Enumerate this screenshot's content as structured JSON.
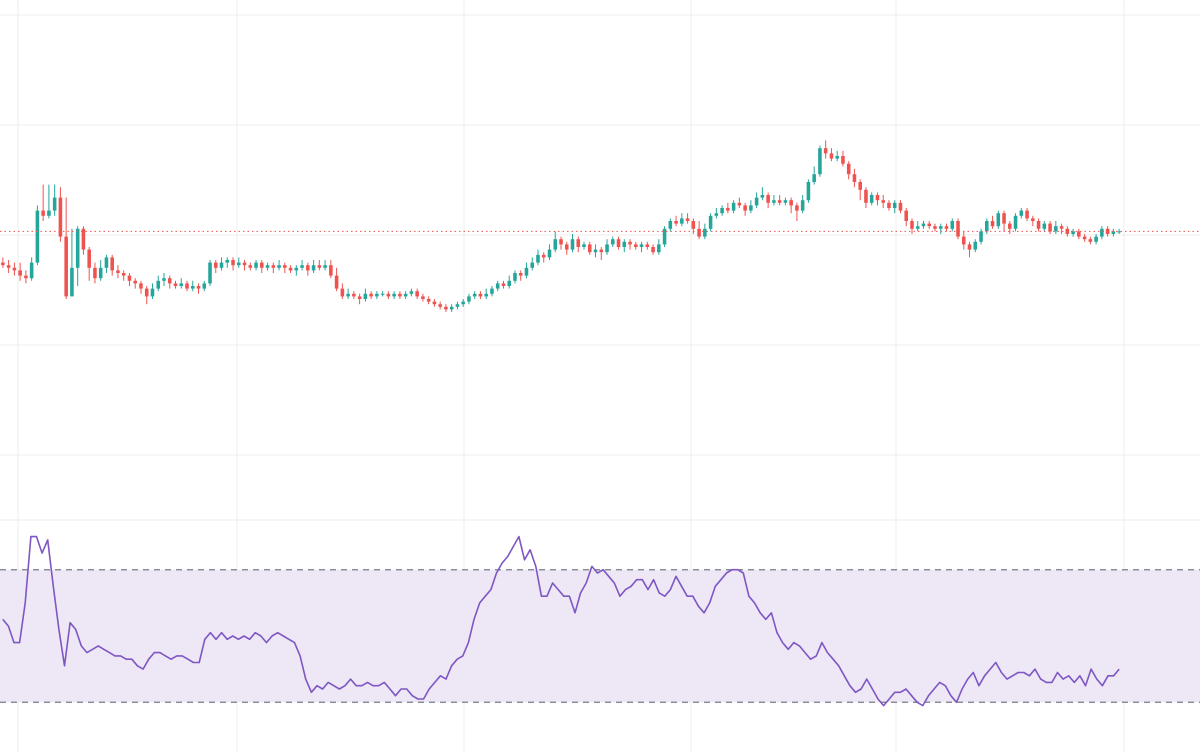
{
  "theme": {
    "background": "#ffffff",
    "grid": "#ececec",
    "up": "#26a69a",
    "down": "#ef5350",
    "price_line": "#ef5350",
    "rsi_line": "#7e57c2",
    "rsi_band_fill": "#ede7f6",
    "band_border": "#787b86"
  },
  "chart_data": [
    {
      "type": "candlestick",
      "title": "",
      "grid": true,
      "x_index_range": [
        0,
        200
      ],
      "ylim": [
        0,
        10
      ],
      "last_price_line": 5.55,
      "candles": [
        [
          4.95,
          4.9,
          5.05,
          4.85
        ],
        [
          4.9,
          4.85,
          5.0,
          4.75
        ],
        [
          4.85,
          4.8,
          4.95,
          4.7
        ],
        [
          4.8,
          4.7,
          4.95,
          4.6
        ],
        [
          4.7,
          4.65,
          4.8,
          4.55
        ],
        [
          4.65,
          4.95,
          5.05,
          4.6
        ],
        [
          4.95,
          5.95,
          6.05,
          4.9
        ],
        [
          5.95,
          5.85,
          6.45,
          5.75
        ],
        [
          5.85,
          5.95,
          6.45,
          5.8
        ],
        [
          5.95,
          6.2,
          6.45,
          5.85
        ],
        [
          6.2,
          5.45,
          6.4,
          5.35
        ],
        [
          5.45,
          4.3,
          6.2,
          4.25
        ],
        [
          4.3,
          4.85,
          5.6,
          4.35
        ],
        [
          4.85,
          5.6,
          5.65,
          4.5
        ],
        [
          5.6,
          5.2,
          5.65,
          5.1
        ],
        [
          5.2,
          4.85,
          5.25,
          4.6
        ],
        [
          4.85,
          4.65,
          4.95,
          4.55
        ],
        [
          4.65,
          4.85,
          5.0,
          4.6
        ],
        [
          4.85,
          5.05,
          5.1,
          4.75
        ],
        [
          5.05,
          4.8,
          5.1,
          4.7
        ],
        [
          4.8,
          4.75,
          4.9,
          4.65
        ],
        [
          4.75,
          4.7,
          4.8,
          4.6
        ],
        [
          4.7,
          4.6,
          4.75,
          4.5
        ],
        [
          4.6,
          4.55,
          4.65,
          4.45
        ],
        [
          4.55,
          4.45,
          4.6,
          4.35
        ],
        [
          4.45,
          4.3,
          4.5,
          4.15
        ],
        [
          4.3,
          4.45,
          4.55,
          4.25
        ],
        [
          4.45,
          4.6,
          4.7,
          4.4
        ],
        [
          4.6,
          4.65,
          4.75,
          4.5
        ],
        [
          4.65,
          4.55,
          4.7,
          4.45
        ],
        [
          4.55,
          4.5,
          4.6,
          4.45
        ],
        [
          4.5,
          4.55,
          4.65,
          4.45
        ],
        [
          4.55,
          4.45,
          4.6,
          4.4
        ],
        [
          4.45,
          4.5,
          4.6,
          4.4
        ],
        [
          4.5,
          4.45,
          4.55,
          4.35
        ],
        [
          4.45,
          4.55,
          4.6,
          4.4
        ],
        [
          4.55,
          4.95,
          5.0,
          4.5
        ],
        [
          4.95,
          4.85,
          5.0,
          4.75
        ],
        [
          4.85,
          4.95,
          5.05,
          4.8
        ],
        [
          4.95,
          5.0,
          5.05,
          4.85
        ],
        [
          5.0,
          4.9,
          5.05,
          4.8
        ],
        [
          4.9,
          4.95,
          5.05,
          4.85
        ],
        [
          4.95,
          4.9,
          5.0,
          4.8
        ],
        [
          4.9,
          4.85,
          4.95,
          4.8
        ],
        [
          4.85,
          4.95,
          5.0,
          4.8
        ],
        [
          4.95,
          4.85,
          5.0,
          4.75
        ],
        [
          4.85,
          4.9,
          4.95,
          4.8
        ],
        [
          4.9,
          4.85,
          4.95,
          4.75
        ],
        [
          4.85,
          4.9,
          5.0,
          4.8
        ],
        [
          4.9,
          4.85,
          4.95,
          4.75
        ],
        [
          4.85,
          4.8,
          4.9,
          4.75
        ],
        [
          4.8,
          4.85,
          4.9,
          4.7
        ],
        [
          4.85,
          4.9,
          5.0,
          4.8
        ],
        [
          4.9,
          4.8,
          4.95,
          4.7
        ],
        [
          4.8,
          4.9,
          5.0,
          4.75
        ],
        [
          4.9,
          4.85,
          5.0,
          4.8
        ],
        [
          4.85,
          4.9,
          5.0,
          4.8
        ],
        [
          4.9,
          4.7,
          5.0,
          4.65
        ],
        [
          4.7,
          4.45,
          4.85,
          4.4
        ],
        [
          4.45,
          4.3,
          4.55,
          4.25
        ],
        [
          4.3,
          4.35,
          4.45,
          4.25
        ],
        [
          4.35,
          4.3,
          4.4,
          4.25
        ],
        [
          4.3,
          4.25,
          4.35,
          4.15
        ],
        [
          4.25,
          4.35,
          4.45,
          4.2
        ],
        [
          4.35,
          4.3,
          4.4,
          4.25
        ],
        [
          4.3,
          4.35,
          4.4,
          4.25
        ],
        [
          4.35,
          4.35,
          4.4,
          4.3
        ],
        [
          4.35,
          4.3,
          4.4,
          4.25
        ],
        [
          4.3,
          4.35,
          4.4,
          4.25
        ],
        [
          4.35,
          4.3,
          4.4,
          4.25
        ],
        [
          4.3,
          4.35,
          4.4,
          4.25
        ],
        [
          4.35,
          4.4,
          4.45,
          4.3
        ],
        [
          4.4,
          4.3,
          4.45,
          4.25
        ],
        [
          4.3,
          4.25,
          4.35,
          4.2
        ],
        [
          4.25,
          4.2,
          4.3,
          4.15
        ],
        [
          4.2,
          4.15,
          4.25,
          4.1
        ],
        [
          4.15,
          4.1,
          4.2,
          4.05
        ],
        [
          4.1,
          4.05,
          4.15,
          4.0
        ],
        [
          4.05,
          4.1,
          4.15,
          4.0
        ],
        [
          4.1,
          4.15,
          4.2,
          4.05
        ],
        [
          4.15,
          4.2,
          4.25,
          4.1
        ],
        [
          4.2,
          4.3,
          4.35,
          4.15
        ],
        [
          4.3,
          4.35,
          4.4,
          4.25
        ],
        [
          4.35,
          4.3,
          4.4,
          4.25
        ],
        [
          4.3,
          4.35,
          4.45,
          4.25
        ],
        [
          4.35,
          4.45,
          4.5,
          4.3
        ],
        [
          4.45,
          4.55,
          4.6,
          4.4
        ],
        [
          4.55,
          4.5,
          4.6,
          4.45
        ],
        [
          4.5,
          4.6,
          4.7,
          4.45
        ],
        [
          4.6,
          4.75,
          4.8,
          4.55
        ],
        [
          4.75,
          4.7,
          4.8,
          4.6
        ],
        [
          4.7,
          4.85,
          4.95,
          4.65
        ],
        [
          4.85,
          4.95,
          5.05,
          4.8
        ],
        [
          4.95,
          5.1,
          5.2,
          4.9
        ],
        [
          5.1,
          5.05,
          5.15,
          4.95
        ],
        [
          5.05,
          5.2,
          5.3,
          5.0
        ],
        [
          5.2,
          5.4,
          5.55,
          5.15
        ],
        [
          5.4,
          5.3,
          5.45,
          5.2
        ],
        [
          5.3,
          5.2,
          5.35,
          5.1
        ],
        [
          5.2,
          5.4,
          5.5,
          5.15
        ],
        [
          5.4,
          5.25,
          5.45,
          5.15
        ],
        [
          5.25,
          5.3,
          5.35,
          5.2
        ],
        [
          5.3,
          5.15,
          5.35,
          5.1
        ],
        [
          5.15,
          5.2,
          5.3,
          5.05
        ],
        [
          5.2,
          5.15,
          5.25,
          5.0
        ],
        [
          5.15,
          5.3,
          5.4,
          5.1
        ],
        [
          5.3,
          5.4,
          5.45,
          5.25
        ],
        [
          5.4,
          5.25,
          5.45,
          5.2
        ],
        [
          5.25,
          5.35,
          5.4,
          5.15
        ],
        [
          5.35,
          5.3,
          5.4,
          5.2
        ],
        [
          5.3,
          5.25,
          5.35,
          5.2
        ],
        [
          5.25,
          5.3,
          5.35,
          5.15
        ],
        [
          5.3,
          5.25,
          5.35,
          5.2
        ],
        [
          5.25,
          5.15,
          5.3,
          5.1
        ],
        [
          5.15,
          5.3,
          5.4,
          5.1
        ],
        [
          5.3,
          5.6,
          5.65,
          5.25
        ],
        [
          5.6,
          5.75,
          5.8,
          5.55
        ],
        [
          5.75,
          5.7,
          5.85,
          5.65
        ],
        [
          5.7,
          5.8,
          5.9,
          5.65
        ],
        [
          5.8,
          5.75,
          5.9,
          5.7
        ],
        [
          5.75,
          5.6,
          5.8,
          5.5
        ],
        [
          5.6,
          5.45,
          5.75,
          5.4
        ],
        [
          5.45,
          5.6,
          5.7,
          5.4
        ],
        [
          5.6,
          5.85,
          5.9,
          5.55
        ],
        [
          5.85,
          5.9,
          6.0,
          5.8
        ],
        [
          5.9,
          6.0,
          6.05,
          5.85
        ],
        [
          6.0,
          5.95,
          6.1,
          5.9
        ],
        [
          5.95,
          6.1,
          6.15,
          5.9
        ],
        [
          6.1,
          6.05,
          6.2,
          6.0
        ],
        [
          6.05,
          5.95,
          6.1,
          5.85
        ],
        [
          5.95,
          6.05,
          6.15,
          5.9
        ],
        [
          6.05,
          6.2,
          6.3,
          6.0
        ],
        [
          6.2,
          6.25,
          6.4,
          6.15
        ],
        [
          6.25,
          6.1,
          6.3,
          6.0
        ],
        [
          6.1,
          6.15,
          6.25,
          6.05
        ],
        [
          6.15,
          6.1,
          6.25,
          6.05
        ],
        [
          6.1,
          6.15,
          6.2,
          6.05
        ],
        [
          6.15,
          6.05,
          6.2,
          5.9
        ],
        [
          6.05,
          5.95,
          6.1,
          5.75
        ],
        [
          5.95,
          6.15,
          6.25,
          5.9
        ],
        [
          6.15,
          6.5,
          6.55,
          6.1
        ],
        [
          6.5,
          6.65,
          6.8,
          6.45
        ],
        [
          6.65,
          7.15,
          7.2,
          6.6
        ],
        [
          7.15,
          7.05,
          7.3,
          6.95
        ],
        [
          7.05,
          6.95,
          7.15,
          6.9
        ],
        [
          6.95,
          7.0,
          7.1,
          6.9
        ],
        [
          7.0,
          6.85,
          7.1,
          6.8
        ],
        [
          6.85,
          6.65,
          6.9,
          6.55
        ],
        [
          6.65,
          6.5,
          6.75,
          6.4
        ],
        [
          6.5,
          6.35,
          6.55,
          6.15
        ],
        [
          6.35,
          6.1,
          6.4,
          6.0
        ],
        [
          6.1,
          6.25,
          6.3,
          6.05
        ],
        [
          6.25,
          6.15,
          6.3,
          6.05
        ],
        [
          6.15,
          6.1,
          6.25,
          6.0
        ],
        [
          6.1,
          6.0,
          6.15,
          5.95
        ],
        [
          6.0,
          6.1,
          6.15,
          5.9
        ],
        [
          6.1,
          5.95,
          6.15,
          5.9
        ],
        [
          5.95,
          5.75,
          6.0,
          5.65
        ],
        [
          5.75,
          5.6,
          5.8,
          5.5
        ],
        [
          5.6,
          5.65,
          5.75,
          5.55
        ],
        [
          5.65,
          5.7,
          5.75,
          5.6
        ],
        [
          5.7,
          5.65,
          5.75,
          5.6
        ],
        [
          5.65,
          5.6,
          5.7,
          5.55
        ],
        [
          5.6,
          5.65,
          5.7,
          5.5
        ],
        [
          5.65,
          5.6,
          5.7,
          5.55
        ],
        [
          5.6,
          5.75,
          5.8,
          5.55
        ],
        [
          5.75,
          5.45,
          5.8,
          5.4
        ],
        [
          5.45,
          5.3,
          5.55,
          5.2
        ],
        [
          5.3,
          5.2,
          5.35,
          5.05
        ],
        [
          5.2,
          5.35,
          5.4,
          5.15
        ],
        [
          5.35,
          5.55,
          5.6,
          5.3
        ],
        [
          5.55,
          5.75,
          5.8,
          5.5
        ],
        [
          5.75,
          5.65,
          5.85,
          5.6
        ],
        [
          5.65,
          5.9,
          5.95,
          5.6
        ],
        [
          5.9,
          5.7,
          5.95,
          5.55
        ],
        [
          5.7,
          5.6,
          5.75,
          5.5
        ],
        [
          5.6,
          5.85,
          5.9,
          5.55
        ],
        [
          5.85,
          5.95,
          6.0,
          5.8
        ],
        [
          5.95,
          5.8,
          6.0,
          5.75
        ],
        [
          5.8,
          5.75,
          5.85,
          5.65
        ],
        [
          5.75,
          5.6,
          5.8,
          5.55
        ],
        [
          5.6,
          5.7,
          5.75,
          5.55
        ],
        [
          5.7,
          5.55,
          5.75,
          5.5
        ],
        [
          5.55,
          5.65,
          5.75,
          5.5
        ],
        [
          5.65,
          5.6,
          5.7,
          5.5
        ],
        [
          5.6,
          5.5,
          5.65,
          5.45
        ],
        [
          5.5,
          5.55,
          5.6,
          5.45
        ],
        [
          5.55,
          5.45,
          5.6,
          5.4
        ],
        [
          5.45,
          5.4,
          5.5,
          5.35
        ],
        [
          5.4,
          5.35,
          5.45,
          5.3
        ],
        [
          5.35,
          5.45,
          5.5,
          5.3
        ],
        [
          5.45,
          5.6,
          5.65,
          5.4
        ],
        [
          5.6,
          5.5,
          5.65,
          5.45
        ],
        [
          5.5,
          5.55,
          5.6,
          5.45
        ],
        [
          5.55,
          5.55,
          5.6,
          5.5
        ]
      ]
    },
    {
      "type": "line",
      "title": "",
      "grid": true,
      "ylim": [
        15,
        85
      ],
      "band": [
        30,
        70
      ],
      "series": [
        {
          "values": [
            55,
            53,
            48,
            48,
            60,
            80,
            80,
            75,
            79,
            65,
            52,
            41,
            54,
            52,
            47,
            45,
            46,
            47,
            46,
            45,
            44,
            44,
            43,
            43,
            41,
            40,
            43,
            45,
            45,
            44,
            43,
            44,
            44,
            43,
            42,
            42,
            49,
            51,
            49,
            51,
            49,
            50,
            49,
            50,
            49,
            51,
            50,
            48,
            50,
            51,
            50,
            49,
            48,
            44,
            37,
            33,
            35,
            34,
            36,
            35,
            34,
            35,
            37,
            35,
            35,
            36,
            35,
            35,
            36,
            34,
            32,
            34,
            34,
            32,
            31,
            31,
            34,
            36,
            38,
            37,
            41,
            43,
            44,
            48,
            55,
            60,
            62,
            64,
            69,
            72,
            74,
            77,
            80,
            73,
            76,
            71,
            62,
            62,
            66,
            64,
            62,
            62,
            57,
            63,
            66,
            71,
            69,
            70,
            68,
            66,
            62,
            64,
            65,
            67,
            67,
            64,
            67,
            63,
            62,
            64,
            68,
            65,
            62,
            62,
            59,
            57,
            60,
            65,
            67,
            69,
            70,
            70,
            69,
            62,
            60,
            57,
            55,
            57,
            51,
            48,
            46,
            48,
            47,
            45,
            43,
            44,
            48,
            45,
            43,
            41,
            38,
            35,
            33,
            34,
            37,
            34,
            31,
            29,
            31,
            33,
            33,
            34,
            32,
            30,
            29,
            32,
            34,
            36,
            35,
            32,
            30,
            34,
            37,
            39,
            35,
            38,
            40,
            42,
            39,
            37,
            38,
            39,
            39,
            38,
            40,
            37,
            36,
            36,
            39,
            37,
            38,
            36,
            38,
            35,
            40,
            37,
            35,
            38,
            38,
            40
          ]
        }
      ]
    }
  ]
}
